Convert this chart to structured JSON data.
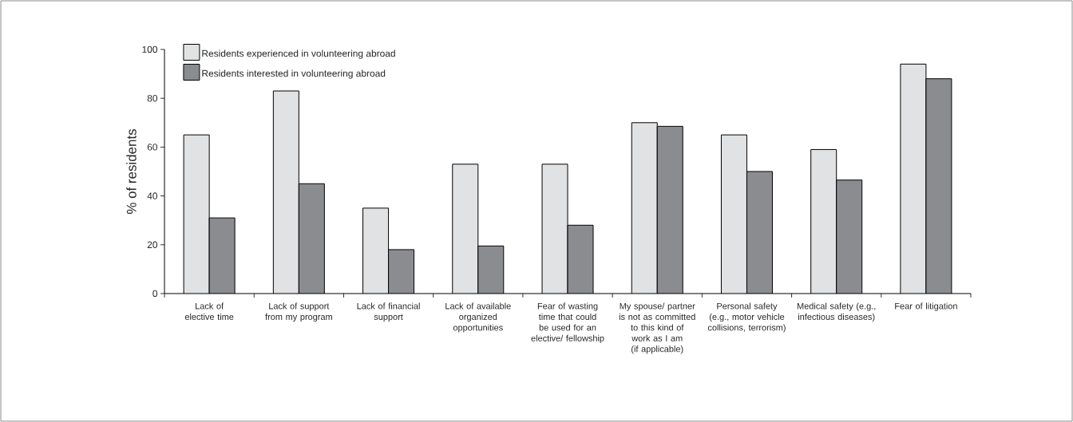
{
  "chart_data": {
    "type": "bar",
    "ylabel": "% of residents",
    "categories": [
      "Lack of elective time",
      "Lack of support from my program",
      "Lack of financial support",
      "Lack of available organized opportunities",
      "Fear of wasting time that could be used for an elective/ fellowship",
      "My spouse/ partner is not as committed to this kind of work as I am (if applicable)",
      "Personal safety (e.g., motor vehicle collisions, terrorism)",
      "Medical safety (e.g., infectious diseases)",
      "Fear of litigation"
    ],
    "series": [
      {
        "name": "Residents experienced in volunteering abroad",
        "color": "#e1e2e3",
        "values": [
          65,
          83,
          35,
          53,
          53,
          70,
          65,
          59,
          94
        ]
      },
      {
        "name": "Residents interested in volunteering abroad",
        "color": "#8b8c90",
        "values": [
          31,
          45,
          18,
          19.5,
          28,
          68.5,
          50,
          46.5,
          88
        ]
      }
    ],
    "ylim": [
      0,
      100
    ],
    "yticks": [
      0,
      20,
      40,
      60,
      80,
      100
    ],
    "grid": false,
    "legend": "top left"
  }
}
